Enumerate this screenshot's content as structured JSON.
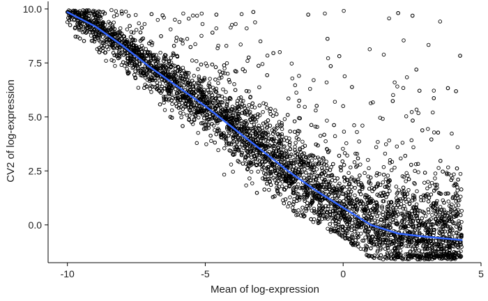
{
  "chart_data": {
    "type": "scatter",
    "title": "",
    "xlabel": "Mean of log-expression",
    "ylabel": "CV2 of log-expression",
    "xlim": [
      -10.7,
      5.0
    ],
    "ylim": [
      -1.75,
      10.35
    ],
    "x_ticks": [
      {
        "value": -10,
        "label": "-10"
      },
      {
        "value": -5,
        "label": "-5"
      },
      {
        "value": 0,
        "label": "0"
      },
      {
        "value": 5,
        "label": "5"
      }
    ],
    "y_ticks": [
      {
        "value": 0.0,
        "label": "0.0"
      },
      {
        "value": 2.5,
        "label": "2.5"
      },
      {
        "value": 5.0,
        "label": "5.0"
      },
      {
        "value": 7.5,
        "label": "7.5"
      },
      {
        "value": 10.0,
        "label": "10.0"
      }
    ],
    "grid": false,
    "legend": "none",
    "point_style": "open-circle",
    "colors": {
      "points": "#000000",
      "trend": "#3366FF"
    },
    "series": [
      {
        "points": [
          {
            "x": -9.9,
            "y": 9.9
          },
          {
            "x": -9.8,
            "y": 9.85
          },
          {
            "x": -9.7,
            "y": 9.9
          },
          {
            "x": -9.6,
            "y": 9.85
          },
          {
            "x": -9.2,
            "y": 9.8
          },
          {
            "x": -8.9,
            "y": 9.3
          },
          {
            "x": -8.7,
            "y": 9.35
          },
          {
            "x": -8.5,
            "y": 9.4
          },
          {
            "x": -9.0,
            "y": 8.95
          },
          {
            "x": -8.8,
            "y": 8.8
          },
          {
            "x": -8.6,
            "y": 8.55
          },
          {
            "x": -8.4,
            "y": 8.3
          },
          {
            "x": -8.2,
            "y": 8.2
          },
          {
            "x": -7.9,
            "y": 8.4
          },
          {
            "x": -7.6,
            "y": 8.9
          },
          {
            "x": -7.2,
            "y": 9.3
          },
          {
            "x": -6.5,
            "y": 9.6
          },
          {
            "x": -6.1,
            "y": 9.5
          },
          {
            "x": -5.6,
            "y": 9.55
          },
          {
            "x": -5.1,
            "y": 9.3
          },
          {
            "x": -4.6,
            "y": 9.1
          },
          {
            "x": -3.9,
            "y": 9.3
          },
          {
            "x": -3.5,
            "y": 9.1
          },
          {
            "x": -3.0,
            "y": 8.5
          },
          {
            "x": -2.3,
            "y": 8.0
          },
          {
            "x": -1.6,
            "y": 6.9
          },
          {
            "x": -1.2,
            "y": 6.3
          },
          {
            "x": -0.6,
            "y": 6.6
          },
          {
            "x": -0.3,
            "y": 5.7
          },
          {
            "x": 0.0,
            "y": 5.5
          },
          {
            "x": 0.5,
            "y": 4.3
          },
          {
            "x": 0.7,
            "y": 4.6
          },
          {
            "x": 1.2,
            "y": 3.6
          },
          {
            "x": 1.7,
            "y": 3.0
          },
          {
            "x": 2.3,
            "y": 2.4
          },
          {
            "x": 2.6,
            "y": 1.9
          },
          {
            "x": 3.0,
            "y": 1.3
          },
          {
            "x": 3.3,
            "y": 1.0
          },
          {
            "x": 3.6,
            "y": 0.5
          },
          {
            "x": 4.3,
            "y": 0.65
          },
          {
            "x": -8.6,
            "y": 7.6
          },
          {
            "x": -7.8,
            "y": 7.0
          },
          {
            "x": -7.0,
            "y": 6.3
          },
          {
            "x": -6.2,
            "y": 5.6
          },
          {
            "x": -5.4,
            "y": 4.9
          },
          {
            "x": -4.6,
            "y": 4.2
          },
          {
            "x": -3.8,
            "y": 3.5
          },
          {
            "x": -3.0,
            "y": 2.8
          },
          {
            "x": -2.2,
            "y": 2.0
          },
          {
            "x": -1.4,
            "y": 1.3
          },
          {
            "x": -0.6,
            "y": 0.6
          },
          {
            "x": 0.2,
            "y": -0.1
          },
          {
            "x": 1.0,
            "y": -0.7
          },
          {
            "x": 1.8,
            "y": -1.2
          },
          {
            "x": 2.6,
            "y": -1.4
          },
          {
            "x": 3.0,
            "y": -1.55
          },
          {
            "x": 3.4,
            "y": -1.2
          },
          {
            "x": 3.8,
            "y": -1.0
          },
          {
            "x": 2.0,
            "y": -1.0
          },
          {
            "x": 1.4,
            "y": -0.9
          }
        ]
      }
    ],
    "trend_line": {
      "x": [
        -10.0,
        -9.0,
        -8.0,
        -7.0,
        -6.0,
        -5.0,
        -4.0,
        -3.0,
        -2.0,
        -1.0,
        0.0,
        1.0,
        2.0,
        3.0,
        4.3
      ],
      "y": [
        9.85,
        9.2,
        8.3,
        7.3,
        6.4,
        5.5,
        4.5,
        3.5,
        2.5,
        1.6,
        0.8,
        0.0,
        -0.4,
        -0.55,
        -0.7
      ]
    }
  }
}
